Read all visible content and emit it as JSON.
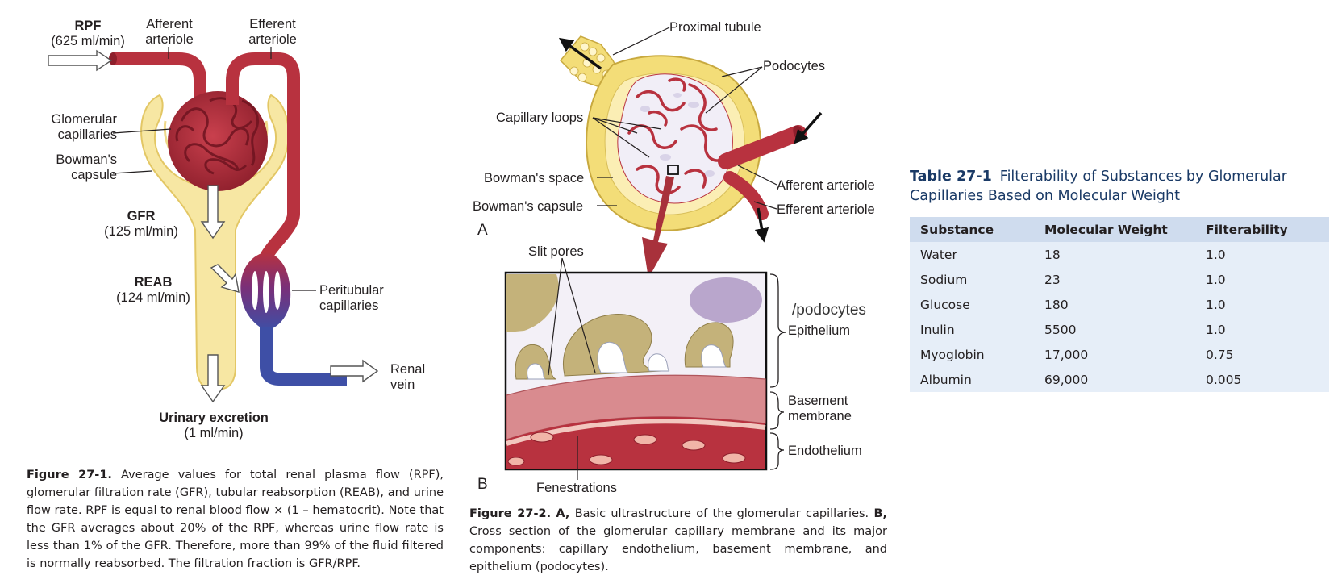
{
  "figure1": {
    "labels": {
      "rpf_title": "RPF",
      "rpf_value": "(625 ml/min)",
      "afferent_line1": "Afferent",
      "afferent_line2": "arteriole",
      "efferent_line1": "Efferent",
      "efferent_line2": "arteriole",
      "glomerular_line1": "Glomerular",
      "glomerular_line2": "capillaries",
      "bowman_line1": "Bowman's",
      "bowman_line2": "capsule",
      "gfr_title": "GFR",
      "gfr_value": "(125 ml/min)",
      "reab_title": "REAB",
      "reab_value": "(124 ml/min)",
      "peritubular_line1": "Peritubular",
      "peritubular_line2": "capillaries",
      "renal_line1": "Renal",
      "renal_line2": "vein",
      "urinary_title": "Urinary excretion",
      "urinary_value": "(1 ml/min)"
    },
    "caption_label": "Figure 27-1.",
    "caption_text": "Average values for total renal plasma flow (RPF), glomerular filtration rate (GFR), tubular reabsorption (REAB), and urine flow rate. RPF is equal to renal blood flow × (1 – hematocrit). Note that the GFR averages about 20% of the RPF, whereas urine flow rate is less than 1% of the GFR. Therefore, more than 99% of the fluid filtered is normally reabsorbed. The filtration fraction is GFR/RPF."
  },
  "figure2": {
    "labels": {
      "proximal_tubule": "Proximal tubule",
      "podocytes": "Podocytes",
      "capillary_loops": "Capillary loops",
      "bowmans_space": "Bowman's space",
      "bowmans_capsule": "Bowman's capsule",
      "afferent_arteriole": "Afferent arteriole",
      "efferent_arteriole": "Efferent arteriole",
      "panel_a": "A",
      "panel_b": "B",
      "slit_pores": "Slit pores",
      "podocytes_slash": "/podocytes",
      "epithelium": "Epithelium",
      "basement_line1": "Basement",
      "basement_line2": "membrane",
      "endothelium": "Endothelium",
      "fenestrations": "Fenestrations"
    },
    "caption_label": "Figure 27-2.",
    "caption_a": "A,",
    "caption_text_a": "Basic ultrastructure of the glomerular capillaries.",
    "caption_b": "B,",
    "caption_text_b": "Cross section of the glomerular capillary membrane and its major components: capillary endothelium, basement membrane, and epithelium (podocytes)."
  },
  "table": {
    "number": "Table 27-1",
    "title": "Filterability of Substances by Glomerular Capillaries Based on Molecular Weight",
    "headers": [
      "Substance",
      "Molecular Weight",
      "Filterability"
    ],
    "rows": [
      [
        "Water",
        "18",
        "1.0"
      ],
      [
        "Sodium",
        "23",
        "1.0"
      ],
      [
        "Glucose",
        "180",
        "1.0"
      ],
      [
        "Inulin",
        "5500",
        "1.0"
      ],
      [
        "Myoglobin",
        "17,000",
        "0.75"
      ],
      [
        "Albumin",
        "69,000",
        "0.005"
      ]
    ]
  },
  "colors": {
    "tubule_yellow": "#f7e7a3",
    "tubule_outline": "#e3c765",
    "vessel_red": "#b8323f",
    "vessel_dark": "#8e1f2c",
    "vein_blue": "#3e4fa6",
    "peritubular_purple": "#7a2f78",
    "table_header_bg": "#cfdcee",
    "table_row_bg": "#e6eef8",
    "table_title": "#1a3a66"
  }
}
